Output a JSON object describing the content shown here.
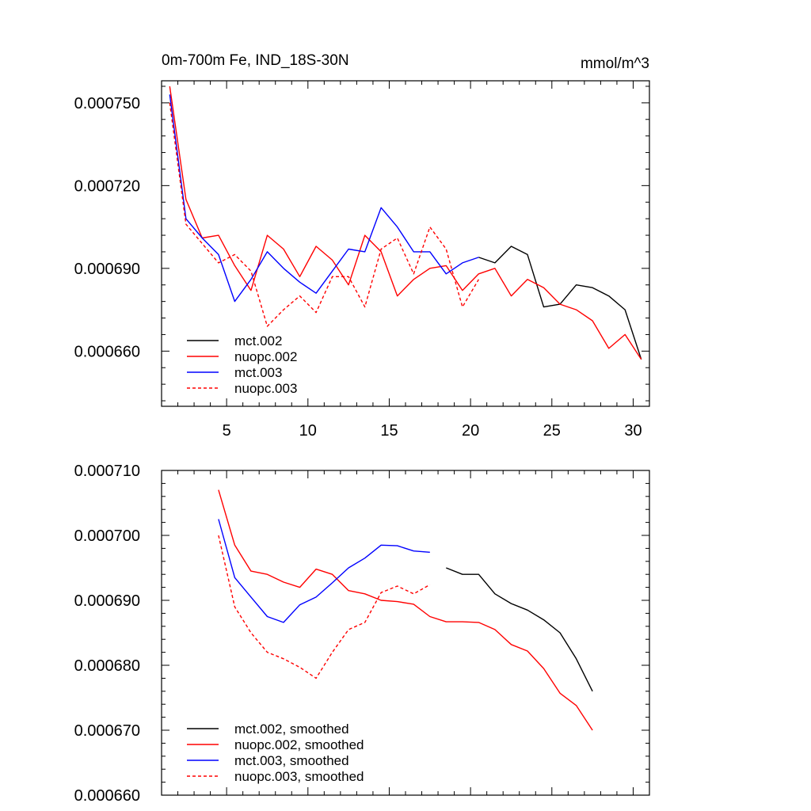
{
  "chart_data": [
    {
      "type": "line",
      "title": "0m-700m Fe, IND_18S-30N",
      "units": "mmol/m^3",
      "xlabel": "",
      "ylabel": "",
      "xlim": [
        1,
        31
      ],
      "ylim": [
        0.00064,
        0.000758
      ],
      "xticks": [
        5,
        10,
        15,
        20,
        25,
        30
      ],
      "yticks": [
        0.00066,
        0.00069,
        0.00072,
        0.00075
      ],
      "ytick_labels": [
        "0.000660",
        "0.000690",
        "0.000720",
        "0.000750"
      ],
      "legend": "bottom-left",
      "series": [
        {
          "name": "mct.002",
          "color": "#000000",
          "dash": false,
          "x": [
            20.5,
            21.5,
            22.5,
            23.5,
            24.5,
            25.5,
            26.5,
            27.5,
            28.5,
            29.5,
            30.5
          ],
          "y": [
            0.000694,
            0.000692,
            0.000698,
            0.000695,
            0.000676,
            0.000677,
            0.000684,
            0.000683,
            0.00068,
            0.000675,
            0.000657
          ]
        },
        {
          "name": "nuopc.002",
          "color": "#ff0000",
          "dash": false,
          "x": [
            1.5,
            2.5,
            3.5,
            4.5,
            5.5,
            6.5,
            7.5,
            8.5,
            9.5,
            10.5,
            11.5,
            12.5,
            13.5,
            14.5,
            15.5,
            16.5,
            17.5,
            18.5,
            19.5,
            20.5,
            21.5,
            22.5,
            23.5,
            24.5,
            25.5,
            26.5,
            27.5,
            28.5,
            29.5,
            30.5
          ],
          "y": [
            0.000756,
            0.000715,
            0.000701,
            0.000702,
            0.000691,
            0.000682,
            0.000702,
            0.000697,
            0.000687,
            0.000698,
            0.000693,
            0.000684,
            0.000702,
            0.000696,
            0.00068,
            0.000686,
            0.00069,
            0.000691,
            0.000682,
            0.000688,
            0.00069,
            0.00068,
            0.000686,
            0.000683,
            0.000677,
            0.000675,
            0.000671,
            0.000661,
            0.000666,
            0.000657
          ]
        },
        {
          "name": "mct.003",
          "color": "#0000ff",
          "dash": false,
          "x": [
            1.5,
            2.5,
            3.5,
            4.5,
            5.5,
            6.5,
            7.5,
            8.5,
            9.5,
            10.5,
            11.5,
            12.5,
            13.5,
            14.5,
            15.5,
            16.5,
            17.5,
            18.5,
            19.5,
            20.5
          ],
          "y": [
            0.000753,
            0.000708,
            0.000701,
            0.000695,
            0.000678,
            0.000686,
            0.000696,
            0.00069,
            0.000685,
            0.000681,
            0.000689,
            0.000697,
            0.000696,
            0.000712,
            0.000705,
            0.000696,
            0.000696,
            0.000688,
            0.000692,
            0.000694
          ]
        },
        {
          "name": "nuopc.003",
          "color": "#ff0000",
          "dash": true,
          "x": [
            1.5,
            2.5,
            3.5,
            4.5,
            5.5,
            6.5,
            7.5,
            8.5,
            9.5,
            10.5,
            11.5,
            12.5,
            13.5,
            14.5,
            15.5,
            16.5,
            17.5,
            18.5,
            19.5,
            20.5
          ],
          "y": [
            0.00075,
            0.000706,
            0.000699,
            0.000692,
            0.000695,
            0.000689,
            0.000669,
            0.000675,
            0.00068,
            0.000674,
            0.000687,
            0.000687,
            0.000676,
            0.000697,
            0.000701,
            0.000688,
            0.000705,
            0.000697,
            0.000676,
            0.000686
          ]
        }
      ]
    },
    {
      "type": "line",
      "title": "",
      "xlabel": "",
      "ylabel": "",
      "xlim": [
        1,
        31
      ],
      "ylim": [
        0.00066,
        0.00071
      ],
      "xticks": [
        5,
        10,
        15,
        20,
        25,
        30
      ],
      "yticks": [
        0.00066,
        0.00067,
        0.00068,
        0.00069,
        0.0007,
        0.00071
      ],
      "ytick_labels": [
        "0.000660",
        "0.000670",
        "0.000680",
        "0.000690",
        "0.000700",
        "0.000710"
      ],
      "legend": "bottom-left",
      "series": [
        {
          "name": "mct.002, smoothed",
          "color": "#000000",
          "dash": false,
          "x": [
            18.5,
            19.5,
            20.5,
            21.5,
            22.5,
            23.5,
            24.5,
            25.5,
            26.5,
            27.5
          ],
          "y": [
            0.000695,
            0.000694,
            0.000694,
            0.000691,
            0.0006895,
            0.0006885,
            0.000687,
            0.000685,
            0.000681,
            0.000676
          ]
        },
        {
          "name": "nuopc.002, smoothed",
          "color": "#ff0000",
          "dash": false,
          "x": [
            4.5,
            5.5,
            6.5,
            7.5,
            8.5,
            9.5,
            10.5,
            11.5,
            12.5,
            13.5,
            14.5,
            15.5,
            16.5,
            17.5,
            18.5,
            19.5,
            20.5,
            21.5,
            22.5,
            23.5,
            24.5,
            25.5,
            26.5,
            27.5
          ],
          "y": [
            0.000707,
            0.0006985,
            0.0006945,
            0.000694,
            0.0006928,
            0.000692,
            0.0006948,
            0.000694,
            0.0006915,
            0.000691,
            0.00069,
            0.0006898,
            0.0006894,
            0.0006875,
            0.0006867,
            0.0006867,
            0.0006866,
            0.0006855,
            0.0006832,
            0.0006822,
            0.0006795,
            0.0006757,
            0.0006738,
            0.00067
          ]
        },
        {
          "name": "mct.003, smoothed",
          "color": "#0000ff",
          "dash": false,
          "x": [
            4.5,
            5.5,
            6.5,
            7.5,
            8.5,
            9.5,
            10.5,
            11.5,
            12.5,
            13.5,
            14.5,
            15.5,
            16.5,
            17.5
          ],
          "y": [
            0.0007025,
            0.0006935,
            0.0006905,
            0.0006875,
            0.0006866,
            0.0006893,
            0.0006905,
            0.0006927,
            0.000695,
            0.0006965,
            0.0006985,
            0.0006984,
            0.0006976,
            0.0006974
          ]
        },
        {
          "name": "nuopc.003, smoothed",
          "color": "#ff0000",
          "dash": true,
          "x": [
            4.5,
            5.5,
            6.5,
            7.5,
            8.5,
            9.5,
            10.5,
            11.5,
            12.5,
            13.5,
            14.5,
            15.5,
            16.5,
            17.5
          ],
          "y": [
            0.0007,
            0.000689,
            0.000685,
            0.000682,
            0.000681,
            0.0006797,
            0.000678,
            0.000682,
            0.0006855,
            0.0006866,
            0.0006912,
            0.0006922,
            0.000691,
            0.0006924
          ]
        }
      ]
    }
  ]
}
